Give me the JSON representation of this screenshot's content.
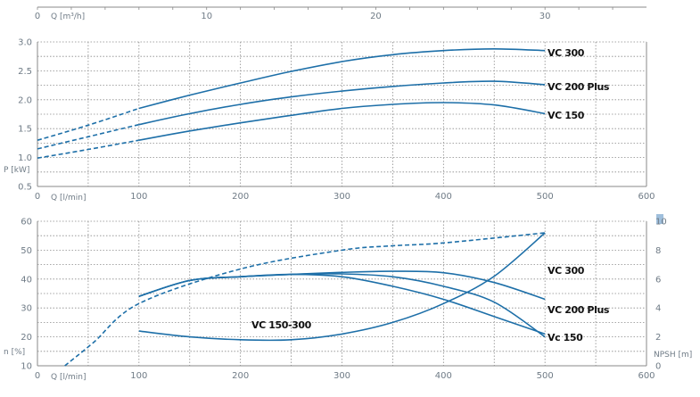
{
  "colors": {
    "curve": "#1d6fa8",
    "grid": "#8a8a8a",
    "text": "#6f7b86",
    "label": "#111111",
    "highlight": "#9fbfdc"
  },
  "top_axis": {
    "label": "Q [m³/h]",
    "ticks": [
      "0",
      "10",
      "20",
      "30"
    ]
  },
  "chart_data": [
    {
      "type": "line",
      "xlabel": "Q [l/min]",
      "ylabel": "P [kW]",
      "xlim": [
        0,
        600
      ],
      "ylim": [
        0.5,
        3.0
      ],
      "x_ticks": [
        "0",
        "100",
        "200",
        "300",
        "400",
        "500",
        "600"
      ],
      "y_ticks": [
        "0.5",
        "1.0",
        "1.5",
        "2.0",
        "2.5",
        "3.0"
      ],
      "grid": true,
      "series": [
        {
          "name": "VC 300",
          "x": [
            0,
            50,
            100,
            150,
            200,
            250,
            300,
            350,
            400,
            450,
            500
          ],
          "y": [
            1.3,
            1.56,
            1.85,
            2.08,
            2.29,
            2.49,
            2.66,
            2.78,
            2.85,
            2.88,
            2.85
          ],
          "dashed_until": 100
        },
        {
          "name": "VC 200 Plus",
          "x": [
            0,
            50,
            100,
            150,
            200,
            250,
            300,
            350,
            400,
            450,
            500
          ],
          "y": [
            1.15,
            1.36,
            1.57,
            1.76,
            1.92,
            2.05,
            2.15,
            2.23,
            2.29,
            2.32,
            2.26
          ],
          "dashed_until": 100
        },
        {
          "name": "VC 150",
          "x": [
            0,
            50,
            100,
            150,
            200,
            250,
            300,
            350,
            400,
            450,
            500
          ],
          "y": [
            0.99,
            1.14,
            1.3,
            1.46,
            1.6,
            1.73,
            1.85,
            1.92,
            1.95,
            1.91,
            1.76
          ],
          "dashed_until": 100
        }
      ]
    },
    {
      "type": "line",
      "xlabel": "Q [l/min]",
      "ylabel": "n [%]",
      "y2label": "NPSH [m]",
      "xlim": [
        0,
        600
      ],
      "ylim": [
        10,
        60
      ],
      "y2lim": [
        0,
        10
      ],
      "x_ticks": [
        "0",
        "100",
        "200",
        "300",
        "400",
        "500",
        "600"
      ],
      "y_ticks": [
        "10",
        "20",
        "30",
        "40",
        "50",
        "60"
      ],
      "y2_ticks": [
        "0",
        "2",
        "4",
        "6",
        "8",
        "10"
      ],
      "grid": true,
      "series": [
        {
          "name": "VC 300",
          "axis": "left",
          "x": [
            100,
            150,
            200,
            250,
            300,
            350,
            400,
            450,
            500
          ],
          "y": [
            34,
            39.5,
            40.8,
            41.6,
            42.3,
            42.7,
            42.2,
            38.8,
            33.0
          ]
        },
        {
          "name": "VC 200 Plus",
          "axis": "left",
          "x": [
            100,
            150,
            200,
            250,
            300,
            350,
            400,
            450,
            500
          ],
          "y": [
            34,
            39.5,
            40.8,
            41.6,
            41.8,
            40.8,
            37.5,
            32.0,
            20.0
          ]
        },
        {
          "name": "Vc 150",
          "axis": "left",
          "x": [
            100,
            150,
            200,
            250,
            300,
            350,
            400,
            450,
            500
          ],
          "y": [
            34,
            39.5,
            40.8,
            41.6,
            40.8,
            37.5,
            33.0,
            27.0,
            21.0
          ]
        },
        {
          "name": "VC 150-300",
          "axis": "right",
          "x": [
            30,
            60,
            100,
            150,
            200,
            250,
            300,
            350,
            400,
            450,
            500
          ],
          "y": [
            0,
            1.5,
            4.6,
            6.2,
            7.1,
            7.7,
            8.0,
            8.0,
            7.8,
            7.6,
            9.2
          ]
        }
      ],
      "npsh_curve": {
        "name": "VC 150-300",
        "axis": "right",
        "x": [
          100,
          150,
          200,
          250,
          300,
          350,
          400,
          450,
          500
        ],
        "y": [
          2.4,
          2.0,
          1.8,
          1.8,
          2.2,
          3.0,
          4.3,
          6.2,
          9.2
        ]
      }
    }
  ]
}
